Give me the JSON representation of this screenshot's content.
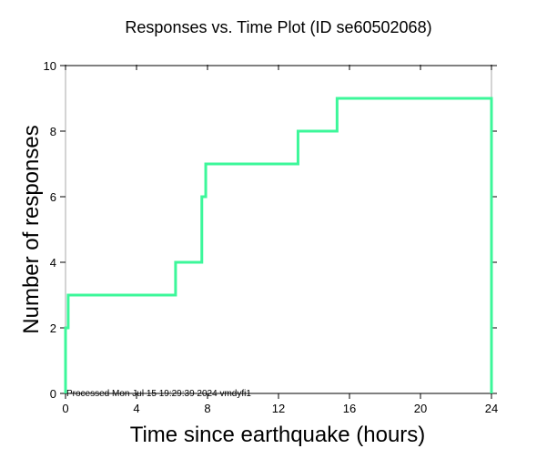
{
  "chart_data": {
    "type": "line",
    "step": true,
    "title": "Responses vs. Time Plot (ID se60502068)",
    "xlabel": "Time since earthquake (hours)",
    "ylabel": "Number of responses",
    "xlim": [
      0,
      24
    ],
    "ylim": [
      0,
      10
    ],
    "xticks": [
      0,
      4,
      8,
      12,
      16,
      20,
      24
    ],
    "yticks": [
      0,
      2,
      4,
      6,
      8,
      10
    ],
    "grid": false,
    "footnote": "Processed Mon Jul 15 19:29:39 2024 vmdyfi1",
    "series": [
      {
        "name": "responses",
        "color": "#3cf79a",
        "x": [
          0,
          0,
          0.15,
          6.2,
          7.68,
          7.9,
          13.1,
          15.3,
          24,
          24
        ],
        "y": [
          0,
          2,
          3,
          4,
          6,
          7,
          8,
          9,
          9,
          0
        ]
      }
    ]
  }
}
